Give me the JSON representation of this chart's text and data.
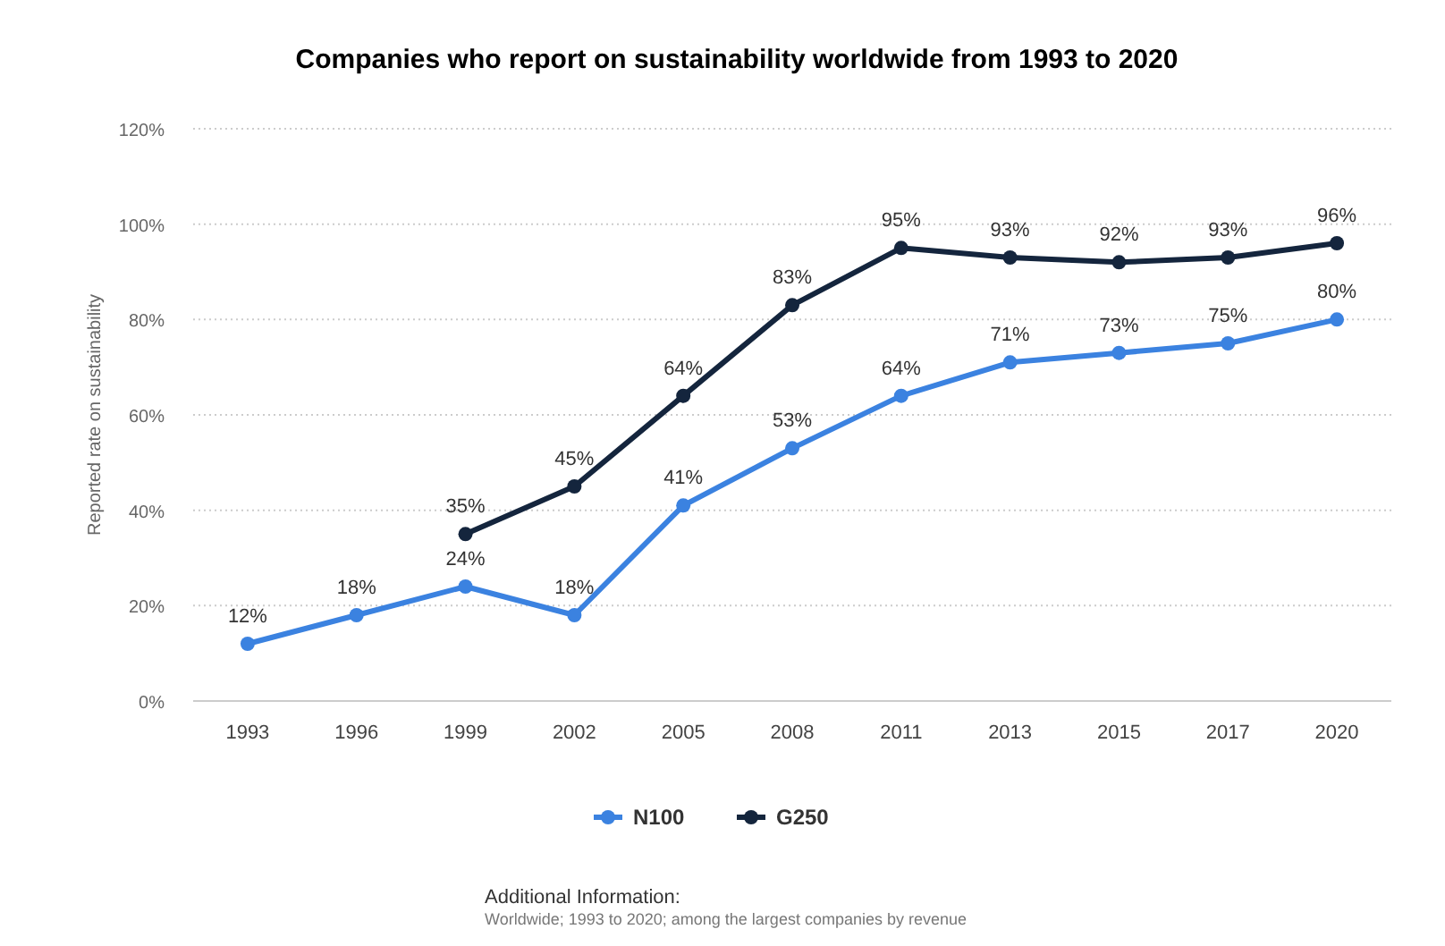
{
  "chart_data": {
    "type": "line",
    "title": "Companies who report on sustainability worldwide from 1993 to 2020",
    "ylabel": "Reported rate on sustainability",
    "categories": [
      "1993",
      "1996",
      "1999",
      "2002",
      "2005",
      "2008",
      "2011",
      "2013",
      "2015",
      "2017",
      "2020"
    ],
    "series": [
      {
        "name": "N100",
        "color": "#3b82e0",
        "values": [
          12,
          18,
          24,
          18,
          41,
          53,
          64,
          71,
          73,
          75,
          80
        ],
        "value_labels": [
          "12%",
          "18%",
          "24%",
          "18%",
          "41%",
          "53%",
          "64%",
          "71%",
          "73%",
          "75%",
          "80%"
        ]
      },
      {
        "name": "G250",
        "color": "#14253d",
        "values": [
          null,
          null,
          35,
          45,
          64,
          83,
          95,
          93,
          92,
          93,
          96
        ],
        "value_labels": [
          null,
          null,
          "35%",
          "45%",
          "64%",
          "83%",
          "95%",
          "93%",
          "92%",
          "93%",
          "96%"
        ]
      }
    ],
    "ylim": [
      0,
      120
    ],
    "yticks": [
      {
        "value": 0,
        "label": "0%"
      },
      {
        "value": 20,
        "label": "20%"
      },
      {
        "value": 40,
        "label": "40%"
      },
      {
        "value": 60,
        "label": "60%"
      },
      {
        "value": 80,
        "label": "80%"
      },
      {
        "value": 100,
        "label": "100%"
      },
      {
        "value": 120,
        "label": "120%"
      }
    ],
    "grid": "y",
    "legend": "bottom",
    "marker": "circle",
    "line_style": "solid",
    "annotations": [
      "Additional Information:",
      "Worldwide; 1993 to 2020; among the largest companies by revenue"
    ]
  }
}
